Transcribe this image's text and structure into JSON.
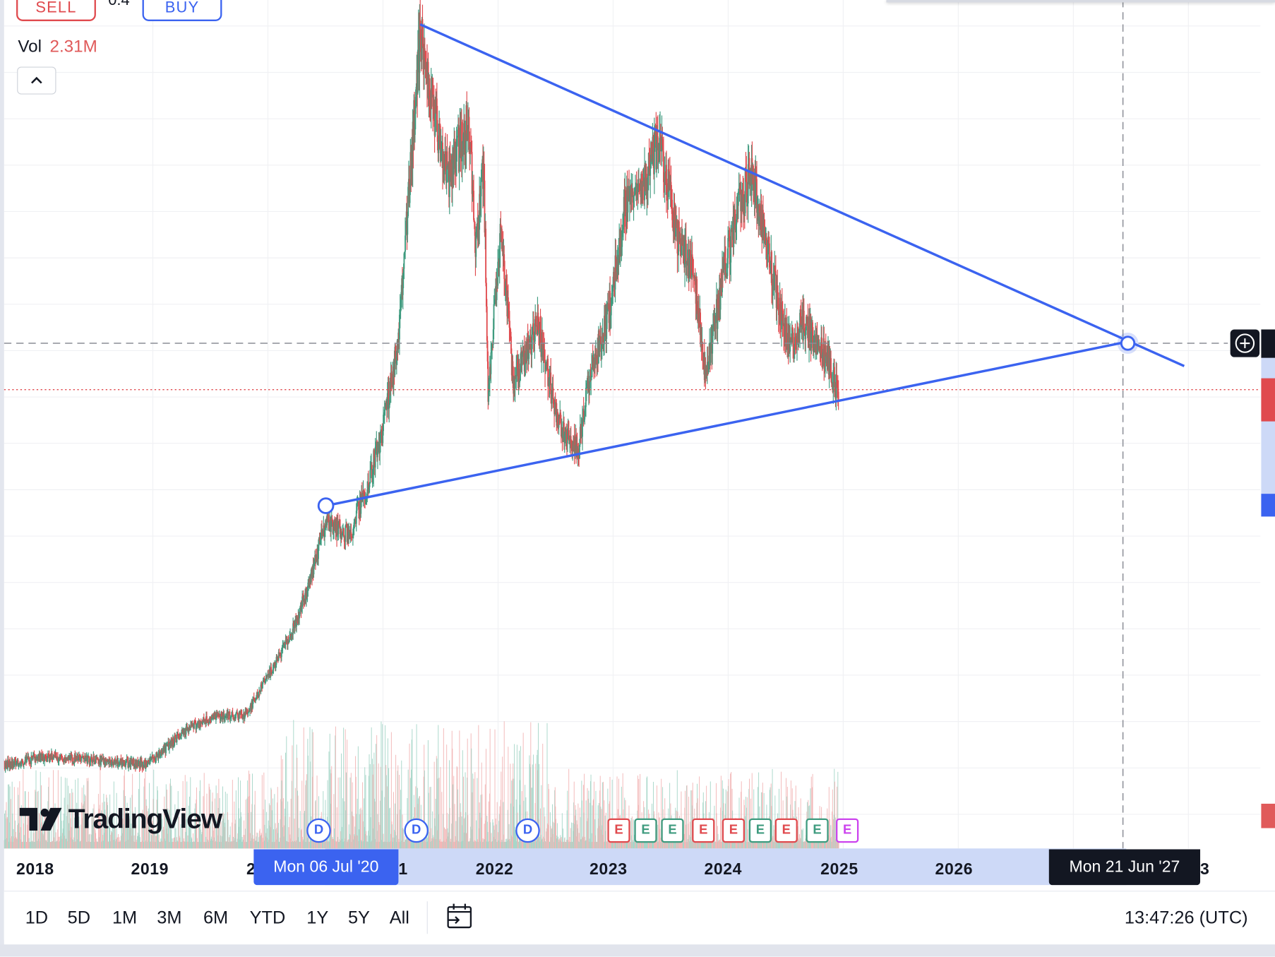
{
  "order_panel": {
    "sell_label": "SELL",
    "spread": "0.4",
    "buy_label": "BUY"
  },
  "volume_legend": {
    "label": "Vol",
    "value": "2.31M"
  },
  "logo": {
    "text": "TradingView"
  },
  "time_axis": {
    "years": [
      "2018",
      "2019",
      "2",
      "1",
      "2022",
      "2023",
      "2024",
      "2025",
      "2026",
      "3"
    ],
    "crosshair_start_label": "Mon 06 Jul '20",
    "crosshair_end_label": "Mon 21 Jun '27"
  },
  "events": [
    {
      "type": "D",
      "label": "D",
      "color": "#3b63f0"
    },
    {
      "type": "D",
      "label": "D",
      "color": "#3b63f0"
    },
    {
      "type": "D",
      "label": "D",
      "color": "#3b63f0"
    },
    {
      "type": "E",
      "label": "E",
      "color": "#e04a4e"
    },
    {
      "type": "E",
      "label": "E",
      "color": "#3f9b7f"
    },
    {
      "type": "E",
      "label": "E",
      "color": "#3f9b7f"
    },
    {
      "type": "E",
      "label": "E",
      "color": "#e04a4e"
    },
    {
      "type": "E",
      "label": "E",
      "color": "#e04a4e"
    },
    {
      "type": "E",
      "label": "E",
      "color": "#3f9b7f"
    },
    {
      "type": "E",
      "label": "E",
      "color": "#e04a4e"
    },
    {
      "type": "E",
      "label": "E",
      "color": "#3f9b7f"
    },
    {
      "type": "E",
      "label": "E",
      "color": "#cc44ee"
    }
  ],
  "toolbar": {
    "ranges": [
      "1D",
      "5D",
      "1M",
      "3M",
      "6M",
      "YTD",
      "1Y",
      "5Y",
      "All"
    ],
    "clock": "13:47:26 (UTC)"
  },
  "colors": {
    "up": "#3f9b7f",
    "down": "#e04a4e",
    "trendline": "#3b63f0",
    "accent": "#3b63f0"
  },
  "chart_data": {
    "type": "candlestick",
    "note": "price scale labels not visible; prices in relative units",
    "price_path": [
      [
        2017.7,
        6.2
      ],
      [
        2018.1,
        7.2
      ],
      [
        2018.5,
        6.7
      ],
      [
        2018.95,
        6.2
      ],
      [
        2019.3,
        10.8
      ],
      [
        2019.55,
        12.4
      ],
      [
        2019.8,
        12.4
      ],
      [
        2020.0,
        17.5
      ],
      [
        2020.2,
        22.7
      ],
      [
        2020.35,
        28.9
      ],
      [
        2020.5,
        37.1
      ],
      [
        2020.7,
        35.1
      ],
      [
        2020.85,
        41.2
      ],
      [
        2020.99,
        48.5
      ],
      [
        2021.13,
        59.8
      ],
      [
        2021.2,
        74.2
      ],
      [
        2021.32,
        98.9
      ],
      [
        2021.42,
        90.7
      ],
      [
        2021.56,
        80.4
      ],
      [
        2021.74,
        87.6
      ],
      [
        2021.8,
        72.2
      ],
      [
        2021.87,
        82.5
      ],
      [
        2021.91,
        53.6
      ],
      [
        2022.02,
        74.2
      ],
      [
        2022.13,
        54.6
      ],
      [
        2022.34,
        61.9
      ],
      [
        2022.52,
        49.5
      ],
      [
        2022.7,
        46.4
      ],
      [
        2022.8,
        56.7
      ],
      [
        2022.94,
        61.9
      ],
      [
        2023.09,
        76.3
      ],
      [
        2023.26,
        79.4
      ],
      [
        2023.4,
        85.6
      ],
      [
        2023.55,
        73.2
      ],
      [
        2023.69,
        69.1
      ],
      [
        2023.8,
        55.7
      ],
      [
        2023.97,
        69.1
      ],
      [
        2024.08,
        76.3
      ],
      [
        2024.19,
        80.9
      ],
      [
        2024.3,
        74.2
      ],
      [
        2024.4,
        67.0
      ],
      [
        2024.51,
        59.8
      ],
      [
        2024.65,
        61.9
      ],
      [
        2024.79,
        59.8
      ],
      [
        2024.96,
        53.1
      ]
    ],
    "trendlines": [
      {
        "name": "upper-resistance",
        "from": [
          2021.32,
          100.0
        ],
        "to": [
          2027.96,
          56.7
        ]
      },
      {
        "name": "lower-support",
        "from": [
          2020.5,
          39.0
        ],
        "to": [
          2027.47,
          59.8
        ]
      }
    ],
    "crosshair": {
      "date": "Mon 21 Jun '27"
    }
  }
}
